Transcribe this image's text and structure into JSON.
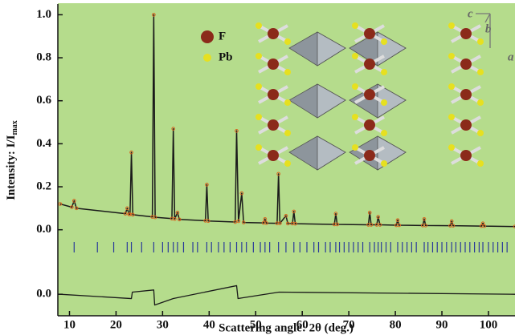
{
  "chart_data": {
    "type": "line",
    "ylabel": "Intensity: I/I",
    "ylabel_sub": "max",
    "xlabel": "Scattering angle: 2θ (deg.)",
    "xlim": [
      7.5,
      105.7
    ],
    "xticks": [
      10,
      20,
      30,
      40,
      50,
      60,
      70,
      80,
      90,
      100
    ],
    "ylim": [
      -0.4,
      1.05
    ],
    "yticks": [
      {
        "value": 0,
        "label": "0.0"
      },
      0.2,
      0.4,
      0.6,
      0.8,
      {
        "value": 1,
        "label": "1.0"
      }
    ],
    "y2lim": [
      -0.1,
      1.35
    ],
    "y2ticks": [
      {
        "value": 0,
        "label": "0.0"
      }
    ],
    "color": "#1a1a1a",
    "x": [
      8,
      10.5,
      11,
      11.5,
      22,
      22.4,
      22.8,
      23.0,
      23.3,
      23.6,
      27.8,
      28.1,
      28.4,
      32.0,
      32.3,
      32.6,
      33.2,
      33.6,
      39.2,
      39.5,
      39.8,
      45.6,
      45.9,
      46.3,
      47.0,
      47.4,
      51.7,
      52.0,
      52.3,
      54.6,
      54.9,
      55.2,
      56.5,
      56.9,
      57.9,
      58.2,
      58.5,
      66.9,
      67.2,
      67.5,
      74.2,
      74.5,
      74.8,
      76.0,
      76.3,
      76.7,
      80.2,
      80.5,
      80.8,
      85.9,
      86.2,
      86.5,
      91.8,
      92.1,
      92.4,
      98.5,
      98.8,
      99.1,
      105.7
    ],
    "values": [
      0.12,
      0.105,
      0.135,
      0.1,
      0.075,
      0.1,
      0.072,
      0.072,
      0.36,
      0.07,
      0.06,
      1.0,
      0.058,
      0.052,
      0.47,
      0.05,
      0.08,
      0.048,
      0.042,
      0.21,
      0.041,
      0.036,
      0.46,
      0.04,
      0.17,
      0.034,
      0.032,
      0.05,
      0.031,
      0.03,
      0.26,
      0.03,
      0.065,
      0.029,
      0.029,
      0.085,
      0.028,
      0.025,
      0.075,
      0.025,
      0.023,
      0.08,
      0.023,
      0.023,
      0.06,
      0.023,
      0.021,
      0.045,
      0.021,
      0.02,
      0.05,
      0.02,
      0.019,
      0.04,
      0.019,
      0.017,
      0.03,
      0.017,
      0.015
    ],
    "difference": {
      "axis": "y2",
      "color": "#1a1a1a",
      "x": [
        8,
        23.3,
        23.5,
        28.1,
        28.3,
        32.3,
        45.9,
        46.2,
        55,
        105.7
      ],
      "values": [
        0.0,
        -0.02,
        0.01,
        0.02,
        -0.05,
        -0.02,
        0.04,
        -0.02,
        0.01,
        0.0
      ]
    },
    "reflections": {
      "color": "#2a3a9a",
      "x": [
        11,
        16,
        19.5,
        22.4,
        23.3,
        25.5,
        28.1,
        30,
        31.2,
        32.3,
        33.2,
        34.5,
        36.5,
        37.5,
        39.5,
        40.5,
        42,
        43.2,
        44.5,
        45.9,
        47,
        48,
        49.5,
        51,
        52,
        53,
        54.9,
        56.5,
        58.2,
        59.5,
        61,
        62.5,
        63.5,
        65,
        66,
        67.2,
        68,
        69,
        70,
        71,
        72,
        73,
        74.5,
        75.5,
        76.3,
        77,
        78,
        79,
        80.5,
        81.5,
        82.5,
        83.5,
        84.5,
        86.2,
        87,
        88,
        89,
        90,
        91,
        92.1,
        93,
        94,
        95,
        96,
        97,
        98,
        98.8,
        100,
        101,
        102,
        103,
        104
      ]
    },
    "legend": [
      {
        "label": "F",
        "color": "#8b2a1a"
      },
      {
        "label": "Pb",
        "color": "#e6e020"
      }
    ],
    "axes_labels": [
      "c",
      "b",
      "a"
    ]
  }
}
